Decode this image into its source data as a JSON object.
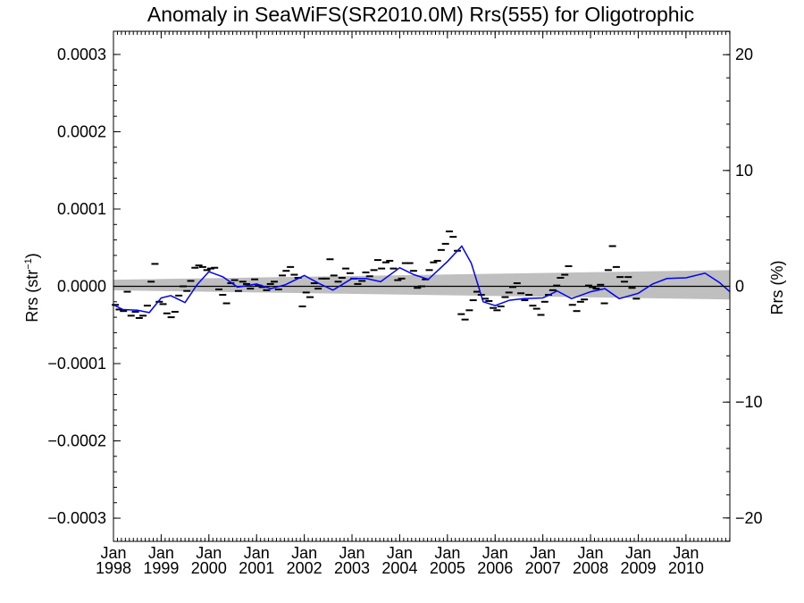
{
  "chart_data": {
    "type": "line",
    "title": "Anomaly in SeaWiFS(SR2010.0M) Rrs(555) for Oligotrophic",
    "ylabel": "Rrs (str",
    "ylabel_sup": "−1",
    "ylabel_close": ")",
    "y2label": "Rrs (%)",
    "xlim": [
      1998.0,
      2010.92
    ],
    "ylim": [
      -0.00033,
      0.00033
    ],
    "y2lim": [
      -22.02,
      22.02
    ],
    "y_ticks": [
      {
        "value": 0.0003,
        "label": "0.0003"
      },
      {
        "value": 0.0002,
        "label": "0.0002"
      },
      {
        "value": 0.0001,
        "label": "0.0001"
      },
      {
        "value": 0.0,
        "label": "0.0000"
      },
      {
        "value": -0.0001,
        "label": "−0.0001"
      },
      {
        "value": -0.0002,
        "label": "−0.0002"
      },
      {
        "value": -0.0003,
        "label": "−0.0003"
      }
    ],
    "y2_ticks": [
      {
        "value": 20,
        "label": "20"
      },
      {
        "value": 10,
        "label": "10"
      },
      {
        "value": 0,
        "label": "0"
      },
      {
        "value": -10,
        "label": "−10"
      },
      {
        "value": -20,
        "label": "−20"
      }
    ],
    "x_ticks": [
      {
        "value": 1998,
        "month": "Jan",
        "year": "1998"
      },
      {
        "value": 1999,
        "month": "Jan",
        "year": "1999"
      },
      {
        "value": 2000,
        "month": "Jan",
        "year": "2000"
      },
      {
        "value": 2001,
        "month": "Jan",
        "year": "2001"
      },
      {
        "value": 2002,
        "month": "Jan",
        "year": "2002"
      },
      {
        "value": 2003,
        "month": "Jan",
        "year": "2003"
      },
      {
        "value": 2004,
        "month": "Jan",
        "year": "2004"
      },
      {
        "value": 2005,
        "month": "Jan",
        "year": "2005"
      },
      {
        "value": 2006,
        "month": "Jan",
        "year": "2006"
      },
      {
        "value": 2007,
        "month": "Jan",
        "year": "2007"
      },
      {
        "value": 2008,
        "month": "Jan",
        "year": "2008"
      },
      {
        "value": 2009,
        "month": "Jan",
        "year": "2009"
      },
      {
        "value": 2010,
        "month": "Jan",
        "year": "2010"
      }
    ],
    "monthly_anomaly": [
      {
        "x": 1998.04,
        "y": -2.4e-05
      },
      {
        "x": 1998.12,
        "y": -3e-05
      },
      {
        "x": 1998.21,
        "y": -3.2e-05
      },
      {
        "x": 1998.29,
        "y": -7e-06
      },
      {
        "x": 1998.37,
        "y": -3.8e-05
      },
      {
        "x": 1998.46,
        "y": -3.3e-05
      },
      {
        "x": 1998.54,
        "y": -4.1e-05
      },
      {
        "x": 1998.62,
        "y": -3.8e-05
      },
      {
        "x": 1998.71,
        "y": -2.5e-05
      },
      {
        "x": 1998.79,
        "y": 6e-06
      },
      {
        "x": 1998.87,
        "y": 2.9e-05
      },
      {
        "x": 1998.96,
        "y": -2e-05
      },
      {
        "x": 1999.04,
        "y": -2.3e-05
      },
      {
        "x": 1999.12,
        "y": -3.5e-05
      },
      {
        "x": 1999.21,
        "y": -4e-05
      },
      {
        "x": 1999.29,
        "y": -3.3e-05
      },
      {
        "x": 1999.37,
        "y": -1.2e-05
      },
      {
        "x": 1999.46,
        "y": 0.0
      },
      {
        "x": 1999.54,
        "y": -6e-06
      },
      {
        "x": 1999.62,
        "y": 7e-06
      },
      {
        "x": 1999.71,
        "y": 2.4e-05
      },
      {
        "x": 1999.79,
        "y": 2.7e-05
      },
      {
        "x": 1999.87,
        "y": 2.5e-05
      },
      {
        "x": 1999.96,
        "y": 2.1e-05
      },
      {
        "x": 2000.04,
        "y": 2.3e-05
      },
      {
        "x": 2000.12,
        "y": 2.4e-05
      },
      {
        "x": 2000.21,
        "y": -4e-06
      },
      {
        "x": 2000.29,
        "y": -1.1e-05
      },
      {
        "x": 2000.37,
        "y": -2.2e-05
      },
      {
        "x": 2000.46,
        "y": 4e-06
      },
      {
        "x": 2000.54,
        "y": 8e-06
      },
      {
        "x": 2000.62,
        "y": -6e-06
      },
      {
        "x": 2000.71,
        "y": 6e-06
      },
      {
        "x": 2000.79,
        "y": 3e-06
      },
      {
        "x": 2000.87,
        "y": -3e-06
      },
      {
        "x": 2000.96,
        "y": 9e-06
      },
      {
        "x": 2001.04,
        "y": 1e-06
      },
      {
        "x": 2001.12,
        "y": -1e-06
      },
      {
        "x": 2001.21,
        "y": -5e-06
      },
      {
        "x": 2001.29,
        "y": 3e-06
      },
      {
        "x": 2001.37,
        "y": 6e-06
      },
      {
        "x": 2001.46,
        "y": -4e-06
      },
      {
        "x": 2001.54,
        "y": 1.4e-05
      },
      {
        "x": 2001.62,
        "y": 2e-05
      },
      {
        "x": 2001.71,
        "y": 2.5e-05
      },
      {
        "x": 2001.79,
        "y": 1.5e-05
      },
      {
        "x": 2001.87,
        "y": 1.1e-05
      },
      {
        "x": 2001.96,
        "y": -2.6e-05
      },
      {
        "x": 2002.04,
        "y": -8e-06
      },
      {
        "x": 2002.12,
        "y": -1.4e-05
      },
      {
        "x": 2002.21,
        "y": 4e-06
      },
      {
        "x": 2002.29,
        "y": -3e-06
      },
      {
        "x": 2002.37,
        "y": 1e-05
      },
      {
        "x": 2002.46,
        "y": 1e-05
      },
      {
        "x": 2002.54,
        "y": 3.5e-05
      },
      {
        "x": 2002.62,
        "y": 1.4e-05
      },
      {
        "x": 2002.71,
        "y": 6e-06
      },
      {
        "x": 2002.79,
        "y": 1.1e-05
      },
      {
        "x": 2002.87,
        "y": 2.3e-05
      },
      {
        "x": 2002.96,
        "y": 1.7e-05
      },
      {
        "x": 2003.04,
        "y": 1e-05
      },
      {
        "x": 2003.12,
        "y": 3e-06
      },
      {
        "x": 2003.21,
        "y": 7e-06
      },
      {
        "x": 2003.29,
        "y": 1.8e-05
      },
      {
        "x": 2003.37,
        "y": 1.3e-05
      },
      {
        "x": 2003.46,
        "y": 2.1e-05
      },
      {
        "x": 2003.54,
        "y": 3.4e-05
      },
      {
        "x": 2003.62,
        "y": 2.3e-05
      },
      {
        "x": 2003.71,
        "y": 3.1e-05
      },
      {
        "x": 2003.79,
        "y": 3.3e-05
      },
      {
        "x": 2003.87,
        "y": 2.3e-05
      },
      {
        "x": 2003.96,
        "y": 8e-06
      },
      {
        "x": 2004.04,
        "y": 1e-05
      },
      {
        "x": 2004.12,
        "y": 3e-05
      },
      {
        "x": 2004.21,
        "y": 3e-05
      },
      {
        "x": 2004.29,
        "y": 2e-05
      },
      {
        "x": 2004.37,
        "y": -2e-06
      },
      {
        "x": 2004.46,
        "y": 0.0
      },
      {
        "x": 2004.54,
        "y": 9e-06
      },
      {
        "x": 2004.62,
        "y": 2.1e-05
      },
      {
        "x": 2004.71,
        "y": 3.1e-05
      },
      {
        "x": 2004.79,
        "y": 3.3e-05
      },
      {
        "x": 2004.87,
        "y": 4.7e-05
      },
      {
        "x": 2004.96,
        "y": 5.5e-05
      },
      {
        "x": 2005.04,
        "y": 7.1e-05
      },
      {
        "x": 2005.12,
        "y": 6.4e-05
      },
      {
        "x": 2005.21,
        "y": 4.6e-05
      },
      {
        "x": 2005.29,
        "y": -3.6e-05
      },
      {
        "x": 2005.37,
        "y": -4.3e-05
      },
      {
        "x": 2005.46,
        "y": -3.1e-05
      },
      {
        "x": 2005.54,
        "y": -1.8e-05
      },
      {
        "x": 2005.62,
        "y": -7e-06
      },
      {
        "x": 2005.71,
        "y": -1.1e-05
      },
      {
        "x": 2005.79,
        "y": -1.6e-05
      },
      {
        "x": 2005.87,
        "y": -1.9e-05
      },
      {
        "x": 2005.96,
        "y": -2.8e-05
      },
      {
        "x": 2006.04,
        "y": -3.1e-05
      },
      {
        "x": 2006.12,
        "y": -2.6e-05
      },
      {
        "x": 2006.21,
        "y": -1.4e-05
      },
      {
        "x": 2006.29,
        "y": -8e-06
      },
      {
        "x": 2006.37,
        "y": -1e-06
      },
      {
        "x": 2006.46,
        "y": 4e-06
      },
      {
        "x": 2006.54,
        "y": -9e-06
      },
      {
        "x": 2006.62,
        "y": -1.8e-05
      },
      {
        "x": 2006.71,
        "y": -1.1e-05
      },
      {
        "x": 2006.79,
        "y": -2.5e-05
      },
      {
        "x": 2006.87,
        "y": -2.9e-05
      },
      {
        "x": 2006.96,
        "y": -3.7e-05
      },
      {
        "x": 2007.04,
        "y": -2e-05
      },
      {
        "x": 2007.12,
        "y": -1.1e-05
      },
      {
        "x": 2007.21,
        "y": -5e-06
      },
      {
        "x": 2007.29,
        "y": 1e-06
      },
      {
        "x": 2007.37,
        "y": 1.1e-05
      },
      {
        "x": 2007.46,
        "y": 1.5e-05
      },
      {
        "x": 2007.54,
        "y": 2.6e-05
      },
      {
        "x": 2007.62,
        "y": -2.4e-05
      },
      {
        "x": 2007.71,
        "y": -3.2e-05
      },
      {
        "x": 2007.79,
        "y": -2e-05
      },
      {
        "x": 2007.87,
        "y": -1.7e-05
      },
      {
        "x": 2007.96,
        "y": 1e-06
      },
      {
        "x": 2008.04,
        "y": -1e-06
      },
      {
        "x": 2008.12,
        "y": -3e-06
      },
      {
        "x": 2008.21,
        "y": 2e-06
      },
      {
        "x": 2008.29,
        "y": -2.2e-05
      },
      {
        "x": 2008.37,
        "y": 2.1e-05
      },
      {
        "x": 2008.46,
        "y": 5.2e-05
      },
      {
        "x": 2008.54,
        "y": 2.5e-05
      },
      {
        "x": 2008.62,
        "y": 1.2e-05
      },
      {
        "x": 2008.71,
        "y": 6e-06
      },
      {
        "x": 2008.79,
        "y": 1.2e-05
      },
      {
        "x": 2008.87,
        "y": -2e-06
      },
      {
        "x": 2008.96,
        "y": -1.6e-05
      }
    ],
    "mean_line": [
      {
        "x": 1998.0,
        "y": -2.4e-05
      },
      {
        "x": 1998.2,
        "y": -3e-05
      },
      {
        "x": 1998.5,
        "y": -3.1e-05
      },
      {
        "x": 1998.75,
        "y": -3.4e-05
      },
      {
        "x": 1999.0,
        "y": -1.5e-05
      },
      {
        "x": 1999.2,
        "y": -1.2e-05
      },
      {
        "x": 1999.5,
        "y": -2.1e-05
      },
      {
        "x": 1999.75,
        "y": 2e-06
      },
      {
        "x": 2000.0,
        "y": 1.9e-05
      },
      {
        "x": 2000.3,
        "y": 1.2e-05
      },
      {
        "x": 2000.6,
        "y": -1e-06
      },
      {
        "x": 2001.0,
        "y": 3e-06
      },
      {
        "x": 2001.3,
        "y": -3e-06
      },
      {
        "x": 2001.6,
        "y": 2e-06
      },
      {
        "x": 2002.0,
        "y": 1.4e-05
      },
      {
        "x": 2002.3,
        "y": 4e-06
      },
      {
        "x": 2002.6,
        "y": -5e-06
      },
      {
        "x": 2003.0,
        "y": 1e-05
      },
      {
        "x": 2003.3,
        "y": 1e-05
      },
      {
        "x": 2003.6,
        "y": 6e-06
      },
      {
        "x": 2004.0,
        "y": 2.4e-05
      },
      {
        "x": 2004.3,
        "y": 1.5e-05
      },
      {
        "x": 2004.6,
        "y": 9e-06
      },
      {
        "x": 2005.0,
        "y": 3.2e-05
      },
      {
        "x": 2005.3,
        "y": 5.2e-05
      },
      {
        "x": 2005.5,
        "y": 3e-05
      },
      {
        "x": 2005.75,
        "y": -2e-05
      },
      {
        "x": 2006.0,
        "y": -2.5e-05
      },
      {
        "x": 2006.3,
        "y": -1.8e-05
      },
      {
        "x": 2006.6,
        "y": -1.6e-05
      },
      {
        "x": 2007.0,
        "y": -1.5e-05
      },
      {
        "x": 2007.3,
        "y": -6e-06
      },
      {
        "x": 2007.6,
        "y": -1.6e-05
      },
      {
        "x": 2008.0,
        "y": -7e-06
      },
      {
        "x": 2008.3,
        "y": -3e-06
      },
      {
        "x": 2008.6,
        "y": -1.6e-05
      },
      {
        "x": 2009.0,
        "y": -9e-06
      },
      {
        "x": 2009.3,
        "y": 3e-06
      },
      {
        "x": 2009.6,
        "y": 1e-05
      },
      {
        "x": 2010.0,
        "y": 1.1e-05
      },
      {
        "x": 2010.4,
        "y": 1.7e-05
      },
      {
        "x": 2010.7,
        "y": 5e-06
      },
      {
        "x": 2010.92,
        "y": -7e-06
      }
    ],
    "confidence_band": {
      "x": [
        1998.0,
        2010.92
      ],
      "upper": [
        8.5e-06,
        2.1e-05
      ],
      "lower": [
        -5.2e-06,
        -1.7e-05
      ]
    },
    "zero_line": 0,
    "grid": false,
    "legend": "none",
    "colors": {
      "mean_line": "#0000ff",
      "markers": "#000000",
      "band": "#bfbfbf",
      "zero_line": "#000000"
    }
  }
}
